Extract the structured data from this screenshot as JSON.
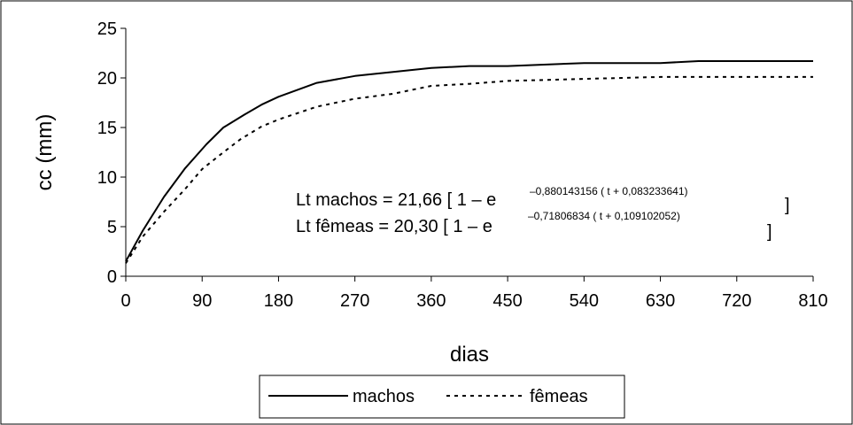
{
  "chart_data": {
    "type": "line",
    "xlabel": "dias",
    "ylabel": "cc (mm)",
    "xlim": [
      0,
      810
    ],
    "ylim": [
      0,
      25
    ],
    "xticks": [
      "0",
      "90",
      "180",
      "270",
      "360",
      "450",
      "540",
      "630",
      "720",
      "810"
    ],
    "yticks": [
      "0",
      "5",
      "10",
      "15",
      "20",
      "25"
    ],
    "grid": false,
    "legend": "bottom-center",
    "series": [
      {
        "name": "machos",
        "style": "solid",
        "color": "#000000",
        "x": [
          0,
          20,
          45,
          70,
          95,
          115,
          140,
          160,
          180,
          225,
          270,
          315,
          360,
          405,
          450,
          540,
          630,
          675,
          720,
          810
        ],
        "y": [
          1.5,
          4.6,
          8.0,
          10.9,
          13.3,
          15.0,
          16.3,
          17.3,
          18.1,
          19.5,
          20.2,
          20.6,
          21.0,
          21.2,
          21.2,
          21.5,
          21.5,
          21.7,
          21.7,
          21.7
        ]
      },
      {
        "name": "fêmeas",
        "style": "dotted",
        "color": "#000000",
        "x": [
          0,
          20,
          45,
          70,
          90,
          115,
          135,
          160,
          180,
          225,
          270,
          315,
          360,
          405,
          450,
          540,
          630,
          720,
          810
        ],
        "y": [
          1.3,
          4.0,
          6.5,
          8.8,
          10.8,
          12.5,
          13.8,
          15.1,
          15.8,
          17.1,
          17.9,
          18.4,
          19.2,
          19.4,
          19.7,
          19.9,
          20.1,
          20.1,
          20.1
        ]
      }
    ],
    "annotations": {
      "eq1_main": "Lt machos = 21,66 [ 1 – e",
      "eq1_exp": "–0,880143156 ( t + 0,083233641)",
      "eq1_end": "]",
      "eq2_main": "Lt fêmeas = 20,30 [ 1 – e",
      "eq2_exp": "–0,71806834 ( t + 0,109102052)",
      "eq2_end": "]"
    }
  }
}
